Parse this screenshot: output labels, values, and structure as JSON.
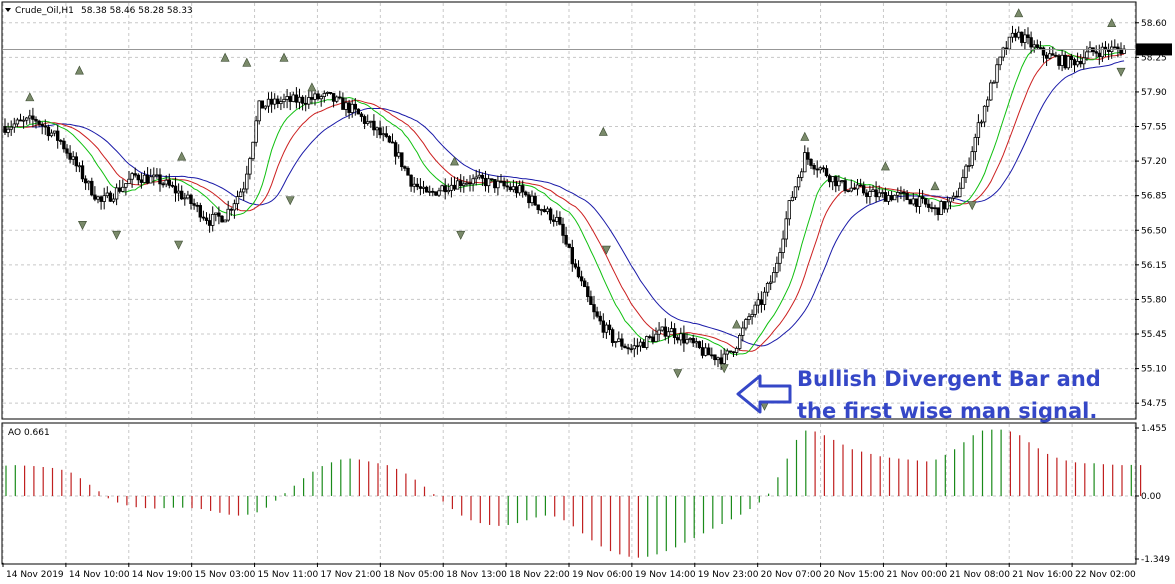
{
  "header": {
    "symbol": "Crude_Oil,H1",
    "ohlc": "58.38 58.46 58.28 58.33"
  },
  "ao_header": {
    "label": "AO 0.661"
  },
  "annotation": {
    "line1": "Bullish Divergent Bar and",
    "line2": "the first wise man signal."
  },
  "colors": {
    "bull_candle": "#ffffff",
    "bear_candle": "#000000",
    "jaw": "#1a1aa8",
    "teeth": "#cc2020",
    "lips": "#10c010",
    "ao_up": "#1a8a1a",
    "ao_down": "#c02020",
    "annotation": "#3547c7",
    "grid": "#c8c8c8"
  },
  "chart_data": [
    {
      "type": "candlestick",
      "title": "Crude_Oil,H1",
      "ylim": [
        54.6,
        58.8
      ],
      "y_ticks": [
        "58.60",
        "58.25",
        "57.90",
        "57.55",
        "57.20",
        "56.85",
        "56.50",
        "56.15",
        "55.80",
        "55.45",
        "55.10",
        "54.75"
      ],
      "current_price": "58.33",
      "x_ticks": [
        "14 Nov 2019",
        "14 Nov 10:00",
        "14 Nov 19:00",
        "15 Nov 03:00",
        "15 Nov 11:00",
        "17 Nov 21:00",
        "18 Nov 05:00",
        "18 Nov 13:00",
        "18 Nov 22:00",
        "19 Nov 06:00",
        "19 Nov 14:00",
        "19 Nov 23:00",
        "20 Nov 07:00",
        "20 Nov 15:00",
        "21 Nov 00:00",
        "21 Nov 08:00",
        "21 Nov 16:00",
        "22 Nov 02:00"
      ],
      "price_path": [
        [
          0,
          57.55
        ],
        [
          10,
          57.62
        ],
        [
          18,
          57.4
        ],
        [
          22,
          57.2
        ],
        [
          27,
          56.95
        ],
        [
          31,
          56.78
        ],
        [
          36,
          56.9
        ],
        [
          42,
          57.05
        ],
        [
          50,
          57.0
        ],
        [
          56,
          56.88
        ],
        [
          61,
          56.75
        ],
        [
          66,
          56.6
        ],
        [
          71,
          56.65
        ],
        [
          77,
          56.95
        ],
        [
          82,
          57.75
        ],
        [
          88,
          57.8
        ],
        [
          96,
          57.82
        ],
        [
          104,
          57.85
        ],
        [
          112,
          57.72
        ],
        [
          120,
          57.5
        ],
        [
          126,
          57.3
        ],
        [
          131,
          57.0
        ],
        [
          136,
          56.85
        ],
        [
          142,
          56.95
        ],
        [
          148,
          57.0
        ],
        [
          154,
          57.0
        ],
        [
          160,
          56.95
        ],
        [
          166,
          56.9
        ],
        [
          172,
          56.75
        ],
        [
          178,
          56.6
        ],
        [
          184,
          56.1
        ],
        [
          190,
          55.65
        ],
        [
          196,
          55.4
        ],
        [
          202,
          55.3
        ],
        [
          208,
          55.4
        ],
        [
          214,
          55.5
        ],
        [
          220,
          55.38
        ],
        [
          226,
          55.25
        ],
        [
          232,
          55.2
        ],
        [
          236,
          55.35
        ],
        [
          240,
          55.62
        ],
        [
          244,
          55.78
        ],
        [
          248,
          56.05
        ],
        [
          253,
          56.75
        ],
        [
          258,
          57.25
        ],
        [
          264,
          57.1
        ],
        [
          270,
          56.95
        ],
        [
          276,
          56.9
        ],
        [
          282,
          56.85
        ],
        [
          288,
          56.85
        ],
        [
          294,
          56.8
        ],
        [
          300,
          56.7
        ],
        [
          306,
          56.8
        ],
        [
          310,
          57.1
        ],
        [
          314,
          57.55
        ],
        [
          318,
          57.95
        ],
        [
          322,
          58.3
        ],
        [
          326,
          58.5
        ],
        [
          330,
          58.4
        ],
        [
          334,
          58.3
        ],
        [
          338,
          58.25
        ],
        [
          342,
          58.2
        ],
        [
          346,
          58.22
        ],
        [
          350,
          58.3
        ],
        [
          356,
          58.33
        ]
      ],
      "fractals_up": [
        [
          8,
          57.85
        ],
        [
          24,
          58.12
        ],
        [
          57,
          57.25
        ],
        [
          71,
          58.25
        ],
        [
          78,
          58.2
        ],
        [
          90,
          58.25
        ],
        [
          99,
          57.95
        ],
        [
          145,
          57.2
        ],
        [
          193,
          57.5
        ],
        [
          236,
          55.55
        ],
        [
          258,
          57.45
        ],
        [
          284,
          57.15
        ],
        [
          300,
          56.95
        ],
        [
          327,
          58.7
        ],
        [
          357,
          58.6
        ]
      ],
      "fractals_down": [
        [
          25,
          56.55
        ],
        [
          36,
          56.45
        ],
        [
          56,
          56.35
        ],
        [
          92,
          56.8
        ],
        [
          147,
          56.45
        ],
        [
          194,
          56.3
        ],
        [
          217,
          55.05
        ],
        [
          232,
          55.1
        ],
        [
          245,
          54.72
        ],
        [
          312,
          56.75
        ],
        [
          360,
          58.1
        ]
      ]
    },
    {
      "type": "bar",
      "title": "AO 0.661",
      "ylim": [
        -1.349,
        1.455
      ],
      "y_ticks": [
        "1.455",
        "0.00",
        "-1.349"
      ],
      "bar_spacing": 3,
      "series": [
        {
          "name": "AO",
          "values": [
            0.65,
            0.66,
            0.65,
            0.64,
            0.62,
            0.6,
            0.56,
            0.5,
            0.38,
            0.24,
            0.1,
            -0.05,
            -0.14,
            -0.2,
            -0.24,
            -0.26,
            -0.27,
            -0.26,
            -0.25,
            -0.25,
            -0.26,
            -0.28,
            -0.32,
            -0.36,
            -0.4,
            -0.42,
            -0.4,
            -0.35,
            -0.25,
            -0.1,
            0.06,
            0.22,
            0.38,
            0.52,
            0.64,
            0.72,
            0.78,
            0.8,
            0.78,
            0.74,
            0.7,
            0.66,
            0.58,
            0.48,
            0.35,
            0.2,
            0.04,
            -0.12,
            -0.28,
            -0.42,
            -0.52,
            -0.58,
            -0.62,
            -0.64,
            -0.62,
            -0.58,
            -0.52,
            -0.46,
            -0.42,
            -0.44,
            -0.52,
            -0.65,
            -0.8,
            -0.95,
            -1.08,
            -1.18,
            -1.25,
            -1.3,
            -1.32,
            -1.3,
            -1.25,
            -1.18,
            -1.1,
            -1.0,
            -0.9,
            -0.8,
            -0.7,
            -0.6,
            -0.5,
            -0.4,
            -0.28,
            -0.14,
            0.05,
            0.4,
            0.8,
            1.2,
            1.4,
            1.38,
            1.3,
            1.2,
            1.1,
            1.0,
            0.95,
            0.9,
            0.85,
            0.82,
            0.8,
            0.78,
            0.76,
            0.74,
            0.78,
            0.88,
            1.0,
            1.15,
            1.3,
            1.4,
            1.42,
            1.42,
            1.38,
            1.3,
            1.15,
            1.02,
            0.9,
            0.82,
            0.76,
            0.72,
            0.7,
            0.7,
            0.68,
            0.67,
            0.66,
            0.665,
            0.661
          ]
        }
      ]
    }
  ]
}
